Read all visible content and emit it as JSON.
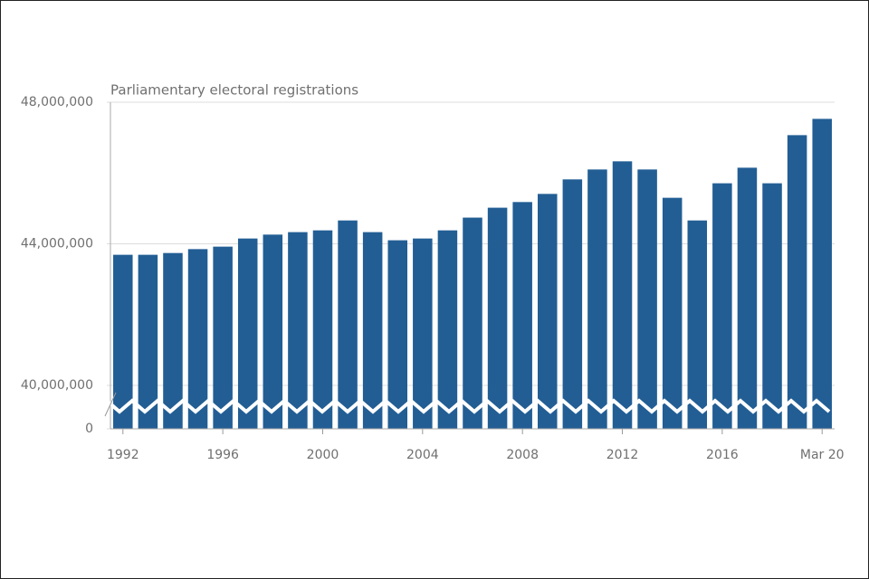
{
  "chart_data": {
    "type": "bar",
    "title": "Parliamentary electoral registrations",
    "categories": [
      "1992",
      null,
      null,
      null,
      "1996",
      null,
      null,
      null,
      "2000",
      null,
      null,
      null,
      "2004",
      null,
      null,
      null,
      "2008",
      null,
      null,
      null,
      "2012",
      null,
      null,
      null,
      "2016",
      null,
      null,
      null,
      "Mar 20"
    ],
    "values": [
      43690000,
      43690000,
      43740000,
      43850000,
      43920000,
      44150000,
      44260000,
      44330000,
      44380000,
      44660000,
      44330000,
      44100000,
      44150000,
      44380000,
      44740000,
      45020000,
      45180000,
      45410000,
      45820000,
      46100000,
      46330000,
      46100000,
      45300000,
      44660000,
      45710000,
      46150000,
      45710000,
      47070000,
      47530000
    ],
    "color": "#225e94",
    "ylim": [
      0,
      48000000
    ],
    "yticks": [
      0,
      {
        "value": 40000000,
        "label": "40,000,000"
      },
      {
        "value": 44000000,
        "label": "44,000,000"
      },
      {
        "value": 48000000,
        "label": "48,000,000"
      }
    ],
    "axis_break": true,
    "grid": true
  }
}
